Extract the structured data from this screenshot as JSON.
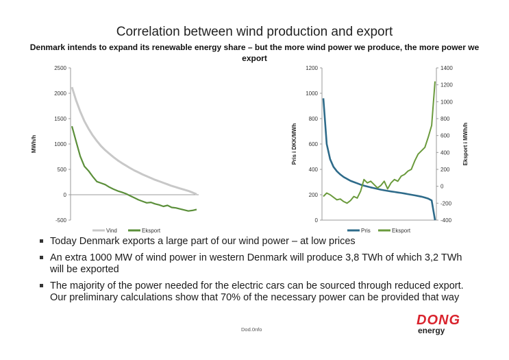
{
  "slide": {
    "title": "Correlation between wind production and export",
    "subtitle": "Denmark intends to expand its renewable energy share – but the more wind power we produce, the more power we export",
    "bullets": [
      "Today Denmark exports a large part of our wind power – at low prices",
      "An extra 1000 MW of wind power in western Denmark will produce 3,8 TWh of which 3,2 TWh will be exported",
      "The majority of the power needed for the electric cars can be sourced through reduced export. Our preliminary calculations show that 70% of the necessary power can be provided that way"
    ],
    "footer": "Dod.0nfo",
    "logo": {
      "line1": "DONG",
      "line2": "energy",
      "color": "#d9232d"
    }
  },
  "chart_data": [
    {
      "type": "line",
      "ylabel": "MWh/h",
      "ylim": [
        -500,
        2500
      ],
      "yticks": [
        "2500",
        "2000",
        "1500",
        "1000",
        "500",
        "0",
        "-500"
      ],
      "grid": false,
      "legend": "bottom",
      "series": [
        {
          "name": "Vind",
          "color": "#c8c8c8",
          "values": [
            2120,
            1860,
            1640,
            1450,
            1300,
            1170,
            1060,
            960,
            880,
            810,
            740,
            680,
            625,
            575,
            525,
            480,
            440,
            400,
            365,
            330,
            295,
            265,
            235,
            205,
            175,
            150,
            125,
            100,
            75,
            45,
            10
          ]
        },
        {
          "name": "Eksport",
          "color": "#5b8f3a",
          "values": [
            1350,
            1050,
            760,
            560,
            470,
            360,
            260,
            230,
            200,
            150,
            110,
            75,
            50,
            20,
            -20,
            -60,
            -100,
            -130,
            -160,
            -150,
            -180,
            -200,
            -230,
            -210,
            -250,
            -260,
            -280,
            -300,
            -320,
            -310,
            -290
          ]
        }
      ]
    },
    {
      "type": "line",
      "ylabel": "Pris i DKK/MWh",
      "ylabel_right": "Eksport i MWh/h",
      "ylim": [
        0,
        1200
      ],
      "yticks": [
        "1200",
        "1000",
        "800",
        "600",
        "400",
        "200",
        "0"
      ],
      "ylim_right": [
        -400,
        1400
      ],
      "yticks_right": [
        "1400",
        "1200",
        "1000",
        "800",
        "600",
        "400",
        "200",
        "0",
        "-200",
        "-400"
      ],
      "grid": false,
      "legend": "bottom",
      "series": [
        {
          "name": "Pris",
          "axis": "left",
          "color": "#2e6b8a",
          "values": [
            960,
            600,
            480,
            420,
            385,
            360,
            340,
            325,
            310,
            300,
            290,
            280,
            272,
            265,
            258,
            252,
            246,
            240,
            235,
            230,
            226,
            222,
            218,
            214,
            210,
            205,
            200,
            195,
            190,
            185,
            178,
            170,
            155,
            0
          ]
        },
        {
          "name": "Eksport",
          "axis": "right",
          "color": "#6a9a3c",
          "values": [
            -120,
            -80,
            -100,
            -130,
            -160,
            -150,
            -180,
            -200,
            -170,
            -120,
            -140,
            -60,
            80,
            40,
            60,
            20,
            -20,
            10,
            60,
            -30,
            40,
            80,
            60,
            120,
            140,
            180,
            200,
            300,
            380,
            420,
            460,
            580,
            720,
            1240
          ]
        }
      ]
    }
  ]
}
